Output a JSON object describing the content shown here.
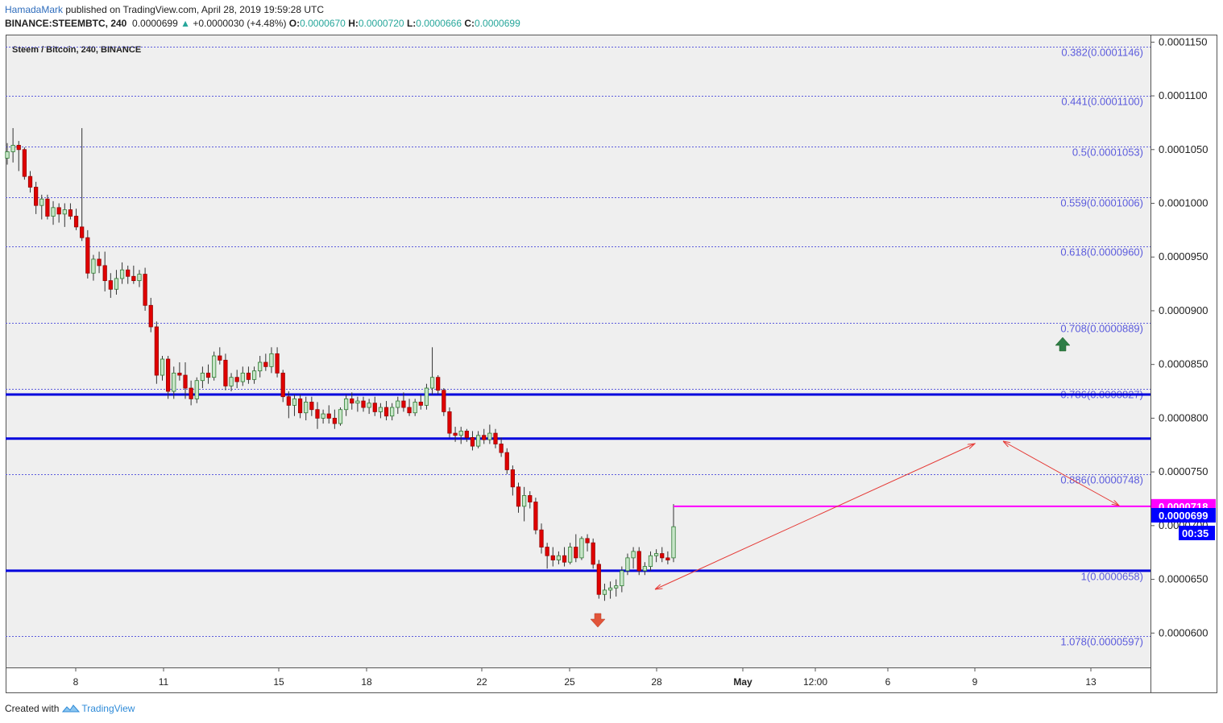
{
  "header": {
    "author": "HamadaMark",
    "published": "published on TradingView.com, April 28, 2019 19:59:28 UTC",
    "symbol": "BINANCE:STEEMBTC, 240",
    "price": "0.0000699",
    "change": "+0.0000030 (+4.48%)",
    "o_label": "O:",
    "o": "0.0000670",
    "h_label": "H:",
    "h": "0.0000720",
    "l_label": "L:",
    "l": "0.0000666",
    "c_label": "C:",
    "c": "0.0000699"
  },
  "footer": {
    "created_with": "Created with",
    "brand": "TradingView"
  },
  "chart_data": {
    "type": "candlestick",
    "title": "Steem / Bitcoin, 240, BINANCE",
    "ylim": [
      5.68e-05,
      0.0001157
    ],
    "y_ticks": [
      "0.0001150",
      "0.0001100",
      "0.0001050",
      "0.0001000",
      "0.0000950",
      "0.0000900",
      "0.0000850",
      "0.0000800",
      "0.0000750",
      "0.0000700",
      "0.0000650",
      "0.0000600"
    ],
    "x_ticks": [
      "8",
      "11",
      "15",
      "18",
      "22",
      "25",
      "28",
      "May",
      "12:00",
      "6",
      "9",
      "13"
    ],
    "fib_levels": [
      {
        "label": "0.382(0.0001146)",
        "value": 0.0001146
      },
      {
        "label": "0.441(0.0001100)",
        "value": 0.00011
      },
      {
        "label": "0.5(0.0001053)",
        "value": 0.0001053
      },
      {
        "label": "0.559(0.0001006)",
        "value": 0.0001006
      },
      {
        "label": "0.618(0.0000960)",
        "value": 9.6e-05
      },
      {
        "label": "0.708(0.0000889)",
        "value": 8.89e-05
      },
      {
        "label": "0.786(0.0000827)",
        "value": 8.27e-05
      },
      {
        "label": "0.886(0.0000748)",
        "value": 7.48e-05
      },
      {
        "label": "1(0.0000658)",
        "value": 6.58e-05
      },
      {
        "label": "1.078(0.0000597)",
        "value": 5.97e-05
      }
    ],
    "horizontal_lines": [
      8.22e-05,
      7.81e-05,
      6.58e-05
    ],
    "resistance_line": {
      "value": 7.18e-05,
      "label": "0.0000718",
      "color": "#ff00ff"
    },
    "last_price": {
      "label": "0.0000699",
      "color": "#0000ff"
    },
    "countdown": "00:35",
    "colors": {
      "up": "#26a69a",
      "down": "#e00000",
      "fib": "#5b5bdd",
      "hline": "#0000dd",
      "arrow": "#e53935",
      "up_marker": "#2e7d46",
      "down_marker": "#e2553a"
    },
    "ohlc": [
      [
        0.0001042,
        0.0001056,
        0.0001036,
        0.0001048
      ],
      [
        0.0001048,
        0.000107,
        0.0001038,
        0.0001054
      ],
      [
        0.0001054,
        0.0001058,
        0.000103,
        0.000105
      ],
      [
        0.000105,
        0.0001052,
        0.0001022,
        0.0001025
      ],
      [
        0.0001025,
        0.000103,
        0.000101,
        0.0001015
      ],
      [
        0.0001015,
        0.000102,
        9.9e-05,
        9.98e-05
      ],
      [
        9.98e-05,
        0.0001008,
        9.85e-05,
        0.0001004
      ],
      [
        0.0001004,
        0.0001008,
        9.85e-05,
        9.88e-05
      ],
      [
        9.88e-05,
        0.0001002,
        9.8e-05,
        9.96e-05
      ],
      [
        9.96e-05,
        0.0001,
        9.82e-05,
        9.9e-05
      ],
      [
        9.9e-05,
        0.0001,
        9.78e-05,
        9.94e-05
      ],
      [
        9.94e-05,
        0.0001,
        9.85e-05,
        9.88e-05
      ],
      [
        9.88e-05,
        9.95e-05,
        9.75e-05,
        9.78e-05
      ],
      [
        9.78e-05,
        0.000107,
        9.65e-05,
        9.68e-05
      ],
      [
        9.68e-05,
        9.75e-05,
        9.3e-05,
        9.35e-05
      ],
      [
        9.35e-05,
        9.52e-05,
        9.28e-05,
        9.48e-05
      ],
      [
        9.48e-05,
        9.55e-05,
        9.35e-05,
        9.42e-05
      ],
      [
        9.42e-05,
        9.55e-05,
        9.18e-05,
        9.28e-05
      ],
      [
        9.28e-05,
        9.35e-05,
        9.12e-05,
        9.2e-05
      ],
      [
        9.2e-05,
        9.38e-05,
        9.15e-05,
        9.3e-05
      ],
      [
        9.3e-05,
        9.45e-05,
        9.25e-05,
        9.38e-05
      ],
      [
        9.38e-05,
        9.42e-05,
        9.25e-05,
        9.32e-05
      ],
      [
        9.32e-05,
        9.42e-05,
        9.25e-05,
        9.28e-05
      ],
      [
        9.28e-05,
        9.38e-05,
        9.22e-05,
        9.34e-05
      ],
      [
        9.34e-05,
        9.4e-05,
        9e-05,
        9.05e-05
      ],
      [
        9.05e-05,
        9.12e-05,
        8.8e-05,
        8.85e-05
      ],
      [
        8.85e-05,
        8.9e-05,
        8.32e-05,
        8.4e-05
      ],
      [
        8.4e-05,
        8.58e-05,
        8.35e-05,
        8.55e-05
      ],
      [
        8.55e-05,
        8.58e-05,
        8.18e-05,
        8.25e-05
      ],
      [
        8.25e-05,
        8.48e-05,
        8.18e-05,
        8.42e-05
      ],
      [
        8.42e-05,
        8.52e-05,
        8.35e-05,
        8.4e-05
      ],
      [
        8.4e-05,
        8.52e-05,
        8.18e-05,
        8.28e-05
      ],
      [
        8.28e-05,
        8.35e-05,
        8.12e-05,
        8.18e-05
      ],
      [
        8.18e-05,
        8.38e-05,
        8.14e-05,
        8.35e-05
      ],
      [
        8.35e-05,
        8.48e-05,
        8.28e-05,
        8.42e-05
      ],
      [
        8.42e-05,
        8.5e-05,
        8.32e-05,
        8.38e-05
      ],
      [
        8.38e-05,
        8.62e-05,
        8.35e-05,
        8.58e-05
      ],
      [
        8.58e-05,
        8.66e-05,
        8.5e-05,
        8.54e-05
      ],
      [
        8.54e-05,
        8.6e-05,
        8.26e-05,
        8.3e-05
      ],
      [
        8.3e-05,
        8.42e-05,
        8.25e-05,
        8.38e-05
      ],
      [
        8.38e-05,
        8.45e-05,
        8.28e-05,
        8.34e-05
      ],
      [
        8.34e-05,
        8.48e-05,
        8.3e-05,
        8.42e-05
      ],
      [
        8.42e-05,
        8.48e-05,
        8.32e-05,
        8.36e-05
      ],
      [
        8.36e-05,
        8.48e-05,
        8.32e-05,
        8.44e-05
      ],
      [
        8.44e-05,
        8.58e-05,
        8.38e-05,
        8.52e-05
      ],
      [
        8.52e-05,
        8.6e-05,
        8.44e-05,
        8.48e-05
      ],
      [
        8.48e-05,
        8.66e-05,
        8.42e-05,
        8.6e-05
      ],
      [
        8.6e-05,
        8.66e-05,
        8.38e-05,
        8.42e-05
      ],
      [
        8.42e-05,
        8.45e-05,
        8.15e-05,
        8.2e-05
      ],
      [
        8.2e-05,
        8.25e-05,
        8e-05,
        8.12e-05
      ],
      [
        8.12e-05,
        8.22e-05,
        8.02e-05,
        8.18e-05
      ],
      [
        8.18e-05,
        8.22e-05,
        8e-05,
        8.05e-05
      ],
      [
        8.05e-05,
        8.2e-05,
        7.98e-05,
        8.15e-05
      ],
      [
        8.15e-05,
        8.2e-05,
        8.02e-05,
        8.08e-05
      ],
      [
        8.08e-05,
        8.15e-05,
        7.9e-05,
        8e-05
      ],
      [
        8e-05,
        8.08e-05,
        7.95e-05,
        8.04e-05
      ],
      [
        8.04e-05,
        8.12e-05,
        7.95e-05,
        8e-05
      ],
      [
        8e-05,
        8.08e-05,
        7.9e-05,
        7.95e-05
      ],
      [
        7.95e-05,
        8.1e-05,
        7.93e-05,
        8.08e-05
      ],
      [
        8.08e-05,
        8.22e-05,
        8.02e-05,
        8.18e-05
      ],
      [
        8.18e-05,
        8.24e-05,
        8.08e-05,
        8.14e-05
      ],
      [
        8.14e-05,
        8.2e-05,
        8.06e-05,
        8.16e-05
      ],
      [
        8.16e-05,
        8.2e-05,
        8.06e-05,
        8.1e-05
      ],
      [
        8.1e-05,
        8.18e-05,
        8.04e-05,
        8.14e-05
      ],
      [
        8.14e-05,
        8.2e-05,
        8.02e-05,
        8.06e-05
      ],
      [
        8.06e-05,
        8.14e-05,
        8e-05,
        8.1e-05
      ],
      [
        8.1e-05,
        8.16e-05,
        7.98e-05,
        8.02e-05
      ],
      [
        8.02e-05,
        8.14e-05,
        7.98e-05,
        8.1e-05
      ],
      [
        8.1e-05,
        8.2e-05,
        8.04e-05,
        8.16e-05
      ],
      [
        8.16e-05,
        8.24e-05,
        8.06e-05,
        8.1e-05
      ],
      [
        8.1e-05,
        8.18e-05,
        8.02e-05,
        8.05e-05
      ],
      [
        8.05e-05,
        8.18e-05,
        8.02e-05,
        8.15e-05
      ],
      [
        8.15e-05,
        8.22e-05,
        8.08e-05,
        8.12e-05
      ],
      [
        8.12e-05,
        8.32e-05,
        8.08e-05,
        8.28e-05
      ],
      [
        8.28e-05,
        8.66e-05,
        8.22e-05,
        8.38e-05
      ],
      [
        8.38e-05,
        8.4e-05,
        8.22e-05,
        8.26e-05
      ],
      [
        8.26e-05,
        8.28e-05,
        8.02e-05,
        8.06e-05
      ],
      [
        8.06e-05,
        8.1e-05,
        7.82e-05,
        7.86e-05
      ],
      [
        7.86e-05,
        7.92e-05,
        7.78e-05,
        7.84e-05
      ],
      [
        7.84e-05,
        7.92e-05,
        7.76e-05,
        7.88e-05
      ],
      [
        7.88e-05,
        7.9e-05,
        7.78e-05,
        7.82e-05
      ],
      [
        7.82e-05,
        7.88e-05,
        7.7e-05,
        7.74e-05
      ],
      [
        7.74e-05,
        7.88e-05,
        7.72e-05,
        7.84e-05
      ],
      [
        7.84e-05,
        7.9e-05,
        7.76e-05,
        7.8e-05
      ],
      [
        7.8e-05,
        7.94e-05,
        7.76e-05,
        7.86e-05
      ],
      [
        7.86e-05,
        7.9e-05,
        7.72e-05,
        7.76e-05
      ],
      [
        7.76e-05,
        7.82e-05,
        7.64e-05,
        7.68e-05
      ],
      [
        7.68e-05,
        7.72e-05,
        7.48e-05,
        7.52e-05
      ],
      [
        7.52e-05,
        7.56e-05,
        7.28e-05,
        7.36e-05
      ],
      [
        7.36e-05,
        7.4e-05,
        7.12e-05,
        7.18e-05
      ],
      [
        7.18e-05,
        7.36e-05,
        7.04e-05,
        7.28e-05
      ],
      [
        7.28e-05,
        7.32e-05,
        7.16e-05,
        7.22e-05
      ],
      [
        7.22e-05,
        7.26e-05,
        6.92e-05,
        6.96e-05
      ],
      [
        6.96e-05,
        7.02e-05,
        6.74e-05,
        6.8e-05
      ],
      [
        6.8e-05,
        6.84e-05,
        6.6e-05,
        6.72e-05
      ],
      [
        6.72e-05,
        6.8e-05,
        6.62e-05,
        6.68e-05
      ],
      [
        6.68e-05,
        6.76e-05,
        6.64e-05,
        6.72e-05
      ],
      [
        6.72e-05,
        6.8e-05,
        6.62e-05,
        6.66e-05
      ],
      [
        6.66e-05,
        6.84e-05,
        6.64e-05,
        6.8e-05
      ],
      [
        6.8e-05,
        6.92e-05,
        6.66e-05,
        6.7e-05
      ],
      [
        6.7e-05,
        6.9e-05,
        6.68e-05,
        6.88e-05
      ],
      [
        6.88e-05,
        6.92e-05,
        6.76e-05,
        6.84e-05
      ],
      [
        6.84e-05,
        6.88e-05,
        6.6e-05,
        6.64e-05
      ],
      [
        6.64e-05,
        6.68e-05,
        6.32e-05,
        6.36e-05
      ],
      [
        6.36e-05,
        6.46e-05,
        6.3e-05,
        6.4e-05
      ],
      [
        6.4e-05,
        6.48e-05,
        6.32e-05,
        6.42e-05
      ],
      [
        6.42e-05,
        6.5e-05,
        6.34e-05,
        6.44e-05
      ],
      [
        6.44e-05,
        6.62e-05,
        6.38e-05,
        6.58e-05
      ],
      [
        6.58e-05,
        6.74e-05,
        6.54e-05,
        6.7e-05
      ],
      [
        6.7e-05,
        6.8e-05,
        6.6e-05,
        6.76e-05
      ],
      [
        6.76e-05,
        6.8e-05,
        6.54e-05,
        6.58e-05
      ],
      [
        6.58e-05,
        6.66e-05,
        6.54e-05,
        6.62e-05
      ],
      [
        6.62e-05,
        6.76e-05,
        6.58e-05,
        6.72e-05
      ],
      [
        6.72e-05,
        6.78e-05,
        6.66e-05,
        6.74e-05
      ],
      [
        6.74e-05,
        6.8e-05,
        6.66e-05,
        6.7e-05
      ],
      [
        6.7e-05,
        6.76e-05,
        6.64e-05,
        6.68e-05
      ],
      [
        6.7e-05,
        7.2e-05,
        6.66e-05,
        6.99e-05
      ]
    ]
  }
}
